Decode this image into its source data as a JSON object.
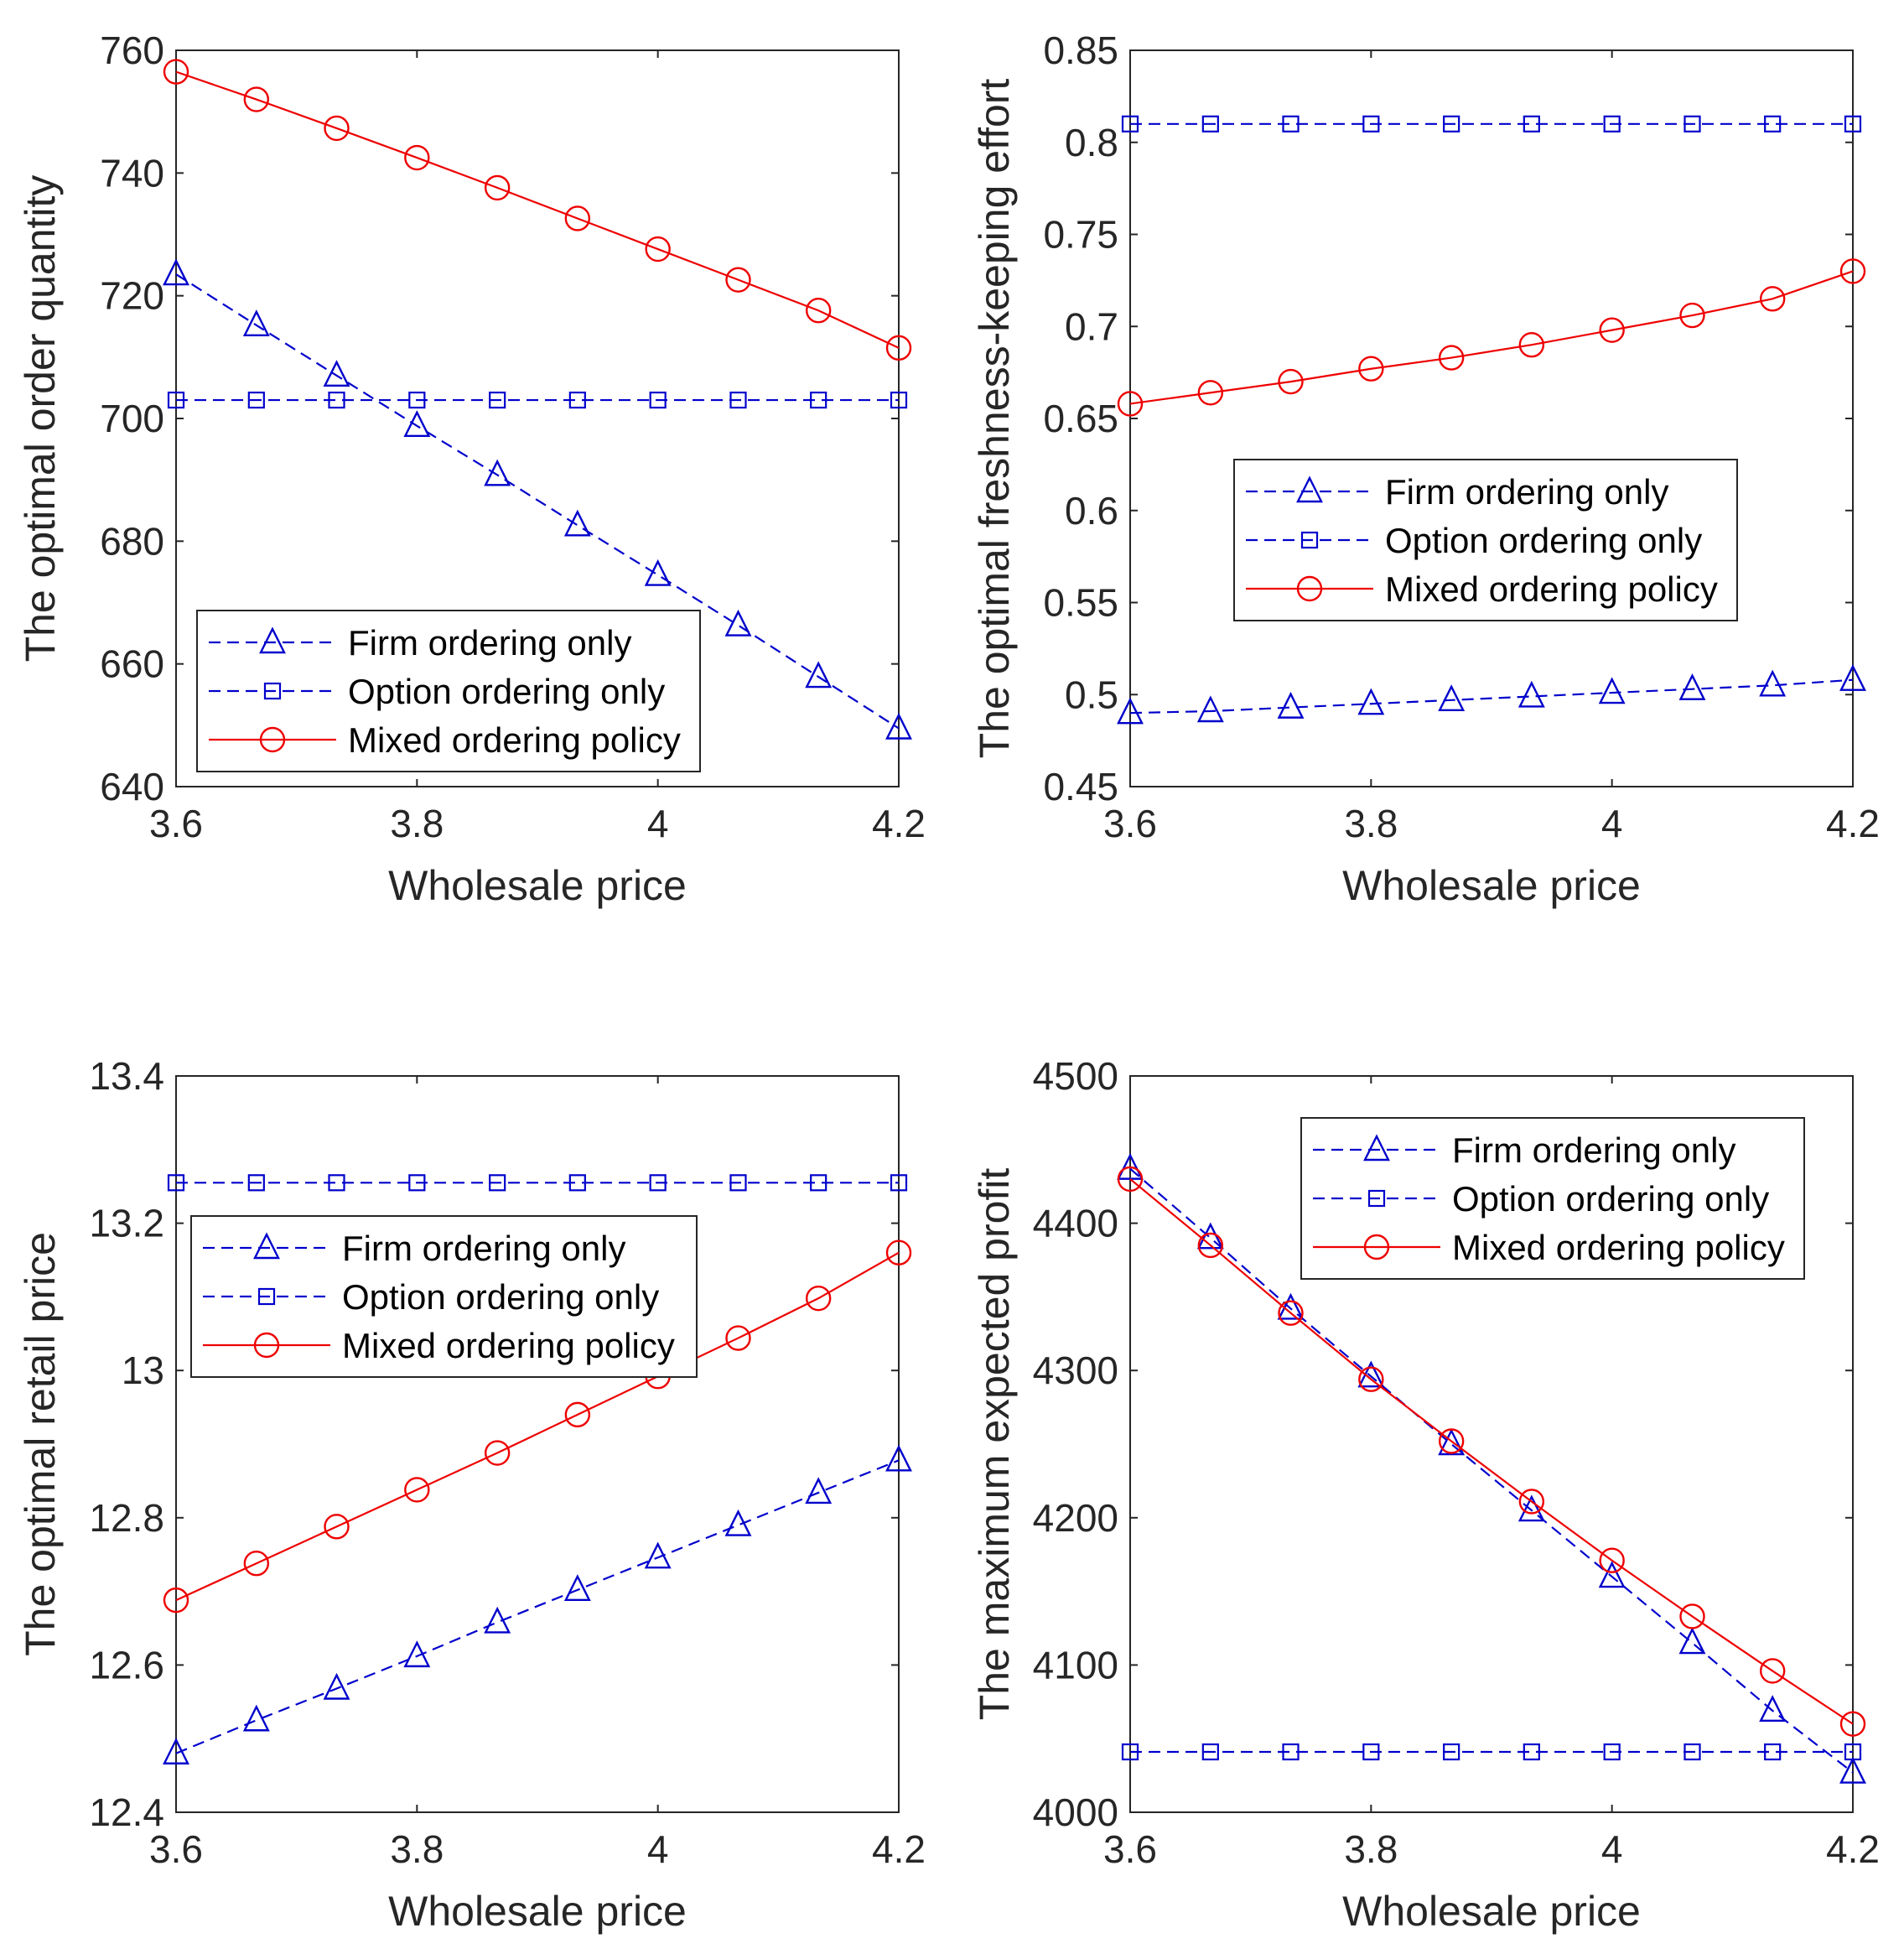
{
  "colors": {
    "firm": "#0000cc",
    "option": "#0000cc",
    "mixed": "#ee0000",
    "axis": "#262626"
  },
  "chart_data": [
    {
      "type": "line",
      "xlabel": "Wholesale price",
      "ylabel": "The optimal order quantity",
      "xlim": [
        3.6,
        4.2
      ],
      "ylim": [
        640,
        760
      ],
      "xticks": [
        3.6,
        3.8,
        4,
        4.2
      ],
      "xtick_labels": [
        "3.6",
        "3.8",
        "4",
        "4.2"
      ],
      "yticks": [
        640,
        660,
        680,
        700,
        720,
        740,
        760
      ],
      "ytick_labels": [
        "640",
        "660",
        "680",
        "700",
        "720",
        "740",
        "760"
      ],
      "x": [
        3.6,
        3.6667,
        3.7333,
        3.8,
        3.8667,
        3.9333,
        4.0,
        4.0667,
        4.1333,
        4.2
      ],
      "legend_position": "bottom-left",
      "series": [
        {
          "name": "Firm ordering only",
          "marker": "triangle",
          "style": "dashed",
          "color": "#0000cc",
          "values": [
            723.5,
            715.2,
            707.0,
            698.8,
            690.8,
            682.6,
            674.5,
            666.3,
            657.9,
            649.5
          ]
        },
        {
          "name": "Option ordering only",
          "marker": "square",
          "style": "dashed",
          "color": "#0000cc",
          "values": [
            703,
            703,
            703,
            703,
            703,
            703,
            703,
            703,
            703,
            703
          ]
        },
        {
          "name": "Mixed ordering policy",
          "marker": "circle",
          "style": "solid",
          "color": "#ee0000",
          "values": [
            756.5,
            752.0,
            747.3,
            742.5,
            737.6,
            732.6,
            727.6,
            722.6,
            717.6,
            711.5
          ]
        }
      ]
    },
    {
      "type": "line",
      "xlabel": "Wholesale price",
      "ylabel": "The optimal freshness-keeping effort",
      "xlim": [
        3.6,
        4.2
      ],
      "ylim": [
        0.45,
        0.85
      ],
      "xticks": [
        3.6,
        3.8,
        4,
        4.2
      ],
      "xtick_labels": [
        "3.6",
        "3.8",
        "4",
        "4.2"
      ],
      "yticks": [
        0.45,
        0.5,
        0.55,
        0.6,
        0.65,
        0.7,
        0.75,
        0.8,
        0.85
      ],
      "ytick_labels": [
        "0.45",
        "0.5",
        "0.55",
        "0.6",
        "0.65",
        "0.7",
        "0.75",
        "0.8",
        "0.85"
      ],
      "x": [
        3.6,
        3.6667,
        3.7333,
        3.8,
        3.8667,
        3.9333,
        4.0,
        4.0667,
        4.1333,
        4.2
      ],
      "legend_position": "middle-right",
      "series": [
        {
          "name": "Firm ordering only",
          "marker": "triangle",
          "style": "dashed",
          "color": "#0000cc",
          "values": [
            0.49,
            0.491,
            0.493,
            0.495,
            0.497,
            0.499,
            0.501,
            0.503,
            0.505,
            0.508
          ]
        },
        {
          "name": "Option ordering only",
          "marker": "square",
          "style": "dashed",
          "color": "#0000cc",
          "values": [
            0.81,
            0.81,
            0.81,
            0.81,
            0.81,
            0.81,
            0.81,
            0.81,
            0.81,
            0.81
          ]
        },
        {
          "name": "Mixed ordering policy",
          "marker": "circle",
          "style": "solid",
          "color": "#ee0000",
          "values": [
            0.658,
            0.664,
            0.67,
            0.677,
            0.683,
            0.69,
            0.698,
            0.706,
            0.715,
            0.73
          ]
        }
      ]
    },
    {
      "type": "line",
      "xlabel": "Wholesale price",
      "ylabel": "The optimal retail price",
      "xlim": [
        3.6,
        4.2
      ],
      "ylim": [
        12.4,
        13.4
      ],
      "xticks": [
        3.6,
        3.8,
        4,
        4.2
      ],
      "xtick_labels": [
        "3.6",
        "3.8",
        "4",
        "4.2"
      ],
      "yticks": [
        12.4,
        12.6,
        12.8,
        13.0,
        13.2,
        13.4
      ],
      "ytick_labels": [
        "12.4",
        "12.6",
        "12.8",
        "13",
        "13.2",
        "13.4"
      ],
      "x": [
        3.6,
        3.6667,
        3.7333,
        3.8,
        3.8667,
        3.9333,
        4.0,
        4.0667,
        4.1333,
        4.2
      ],
      "legend_position": "middle-left",
      "series": [
        {
          "name": "Firm ordering only",
          "marker": "triangle",
          "style": "dashed",
          "color": "#0000cc",
          "values": [
            12.48,
            12.525,
            12.568,
            12.612,
            12.658,
            12.702,
            12.746,
            12.79,
            12.834,
            12.878
          ]
        },
        {
          "name": "Option ordering only",
          "marker": "square",
          "style": "dashed",
          "color": "#0000cc",
          "values": [
            13.255,
            13.255,
            13.255,
            13.255,
            13.255,
            13.255,
            13.255,
            13.255,
            13.255,
            13.255
          ]
        },
        {
          "name": "Mixed ordering policy",
          "marker": "circle",
          "style": "solid",
          "color": "#ee0000",
          "values": [
            12.688,
            12.738,
            12.788,
            12.838,
            12.888,
            12.94,
            12.992,
            13.044,
            13.098,
            13.16
          ]
        }
      ]
    },
    {
      "type": "line",
      "xlabel": "Wholesale price",
      "ylabel": "The maximum expected profit",
      "xlim": [
        3.6,
        4.2
      ],
      "ylim": [
        4000,
        4500
      ],
      "xticks": [
        3.6,
        3.8,
        4,
        4.2
      ],
      "xtick_labels": [
        "3.6",
        "3.8",
        "4",
        "4.2"
      ],
      "yticks": [
        4000,
        4100,
        4200,
        4300,
        4400,
        4500
      ],
      "ytick_labels": [
        "4000",
        "4100",
        "4200",
        "4300",
        "4400",
        "4500"
      ],
      "x": [
        3.6,
        3.6667,
        3.7333,
        3.8,
        3.8667,
        3.9333,
        4.0,
        4.0667,
        4.1333,
        4.2
      ],
      "legend_position": "top-right",
      "series": [
        {
          "name": "Firm ordering only",
          "marker": "triangle",
          "style": "dashed",
          "color": "#0000cc",
          "values": [
            4437,
            4390,
            4342,
            4296,
            4250,
            4205,
            4160,
            4115,
            4069,
            4027
          ]
        },
        {
          "name": "Option ordering only",
          "marker": "square",
          "style": "dashed",
          "color": "#0000cc",
          "values": [
            4041,
            4041,
            4041,
            4041,
            4041,
            4041,
            4041,
            4041,
            4041,
            4041
          ]
        },
        {
          "name": "Mixed ordering policy",
          "marker": "circle",
          "style": "solid",
          "color": "#ee0000",
          "values": [
            4430,
            4385,
            4339,
            4294,
            4252,
            4211,
            4171,
            4133,
            4096,
            4060
          ]
        }
      ]
    }
  ]
}
